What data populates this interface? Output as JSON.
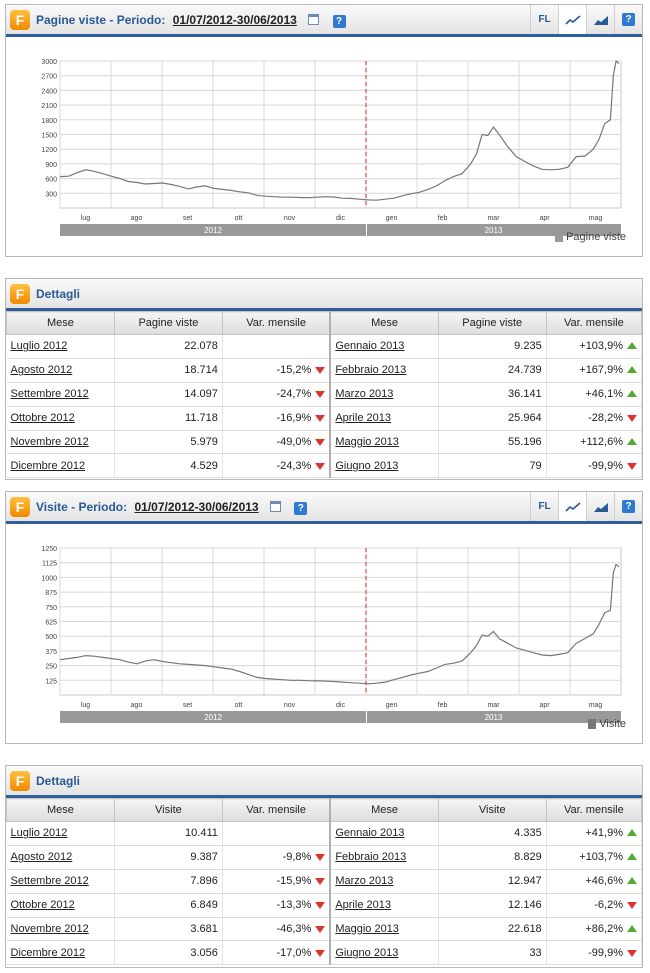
{
  "chart1": {
    "title": "Pagine viste - Periodo:",
    "period": "01/07/2012-30/06/2013",
    "tools": {
      "fl": "FL"
    },
    "legend": "Pagine viste",
    "chart_data": {
      "type": "line",
      "series": [
        {
          "name": "Pagine viste"
        }
      ],
      "ylim": [
        0,
        3000
      ],
      "y_ticks": [
        "3000",
        "2700",
        "2400",
        "2100",
        "1800",
        "1500",
        "1200",
        "900",
        "600",
        "300"
      ],
      "x_months": [
        "lug",
        "ago",
        "set",
        "ott",
        "nov",
        "dic",
        "gen",
        "feb",
        "mar",
        "apr",
        "mag"
      ],
      "years": [
        "2012",
        "2013"
      ],
      "points": [
        [
          0,
          640
        ],
        [
          6,
          650
        ],
        [
          12,
          720
        ],
        [
          18,
          780
        ],
        [
          24,
          750
        ],
        [
          30,
          700
        ],
        [
          36,
          650
        ],
        [
          42,
          600
        ],
        [
          48,
          540
        ],
        [
          54,
          520
        ],
        [
          60,
          490
        ],
        [
          66,
          500
        ],
        [
          72,
          510
        ],
        [
          78,
          480
        ],
        [
          84,
          440
        ],
        [
          90,
          390
        ],
        [
          96,
          430
        ],
        [
          102,
          450
        ],
        [
          108,
          400
        ],
        [
          114,
          380
        ],
        [
          120,
          360
        ],
        [
          126,
          330
        ],
        [
          132,
          310
        ],
        [
          138,
          260
        ],
        [
          144,
          240
        ],
        [
          150,
          230
        ],
        [
          156,
          220
        ],
        [
          162,
          220
        ],
        [
          168,
          215
        ],
        [
          174,
          210
        ],
        [
          180,
          220
        ],
        [
          186,
          230
        ],
        [
          192,
          225
        ],
        [
          198,
          200
        ],
        [
          204,
          195
        ],
        [
          210,
          180
        ],
        [
          216,
          165
        ],
        [
          222,
          160
        ],
        [
          228,
          180
        ],
        [
          234,
          200
        ],
        [
          240,
          250
        ],
        [
          246,
          290
        ],
        [
          252,
          320
        ],
        [
          258,
          380
        ],
        [
          264,
          450
        ],
        [
          270,
          560
        ],
        [
          276,
          640
        ],
        [
          282,
          700
        ],
        [
          288,
          900
        ],
        [
          292,
          1100
        ],
        [
          296,
          1500
        ],
        [
          300,
          1480
        ],
        [
          304,
          1650
        ],
        [
          308,
          1500
        ],
        [
          314,
          1250
        ],
        [
          320,
          1050
        ],
        [
          326,
          950
        ],
        [
          332,
          860
        ],
        [
          338,
          790
        ],
        [
          344,
          780
        ],
        [
          350,
          790
        ],
        [
          356,
          830
        ],
        [
          362,
          1050
        ],
        [
          368,
          1060
        ],
        [
          374,
          1200
        ],
        [
          378,
          1400
        ],
        [
          382,
          1720
        ],
        [
          386,
          1800
        ],
        [
          388,
          2700
        ],
        [
          390,
          3000
        ],
        [
          392,
          2950
        ]
      ]
    }
  },
  "table1": {
    "title": "Dettagli",
    "headers": [
      "Mese",
      "Pagine viste",
      "Var. mensile",
      "Mese",
      "Pagine viste",
      "Var. mensile"
    ],
    "rows": [
      {
        "lm": "Luglio 2012",
        "lv": "22.078",
        "lc": "",
        "ld": "",
        "rm": "Gennaio 2013",
        "rv": "9.235",
        "rc": "+103,9%",
        "rd": "up"
      },
      {
        "lm": "Agosto 2012",
        "lv": "18.714",
        "lc": "-15,2%",
        "ld": "down",
        "rm": "Febbraio 2013",
        "rv": "24.739",
        "rc": "+167,9%",
        "rd": "up"
      },
      {
        "lm": "Settembre 2012",
        "lv": "14.097",
        "lc": "-24,7%",
        "ld": "down",
        "rm": "Marzo 2013",
        "rv": "36.141",
        "rc": "+46,1%",
        "rd": "up"
      },
      {
        "lm": "Ottobre 2012",
        "lv": "11.718",
        "lc": "-16,9%",
        "ld": "down",
        "rm": "Aprile 2013",
        "rv": "25.964",
        "rc": "-28,2%",
        "rd": "down"
      },
      {
        "lm": "Novembre 2012",
        "lv": "5.979",
        "lc": "-49,0%",
        "ld": "down",
        "rm": "Maggio 2013",
        "rv": "55.196",
        "rc": "+112,6%",
        "rd": "up"
      },
      {
        "lm": "Dicembre 2012",
        "lv": "4.529",
        "lc": "-24,3%",
        "ld": "down",
        "rm": "Giugno 2013",
        "rv": "79",
        "rc": "-99,9%",
        "rd": "down"
      }
    ]
  },
  "chart2": {
    "title": "Visite - Periodo:",
    "period": "01/07/2012-30/06/2013",
    "tools": {
      "fl": "FL"
    },
    "legend": "Visite",
    "chart_data": {
      "type": "line",
      "series": [
        {
          "name": "Visite"
        }
      ],
      "ylim": [
        0,
        1250
      ],
      "y_ticks": [
        "1250",
        "1125",
        "1000",
        "875",
        "750",
        "625",
        "500",
        "375",
        "250",
        "125"
      ],
      "x_months": [
        "lug",
        "ago",
        "set",
        "ott",
        "nov",
        "dic",
        "gen",
        "feb",
        "mar",
        "apr",
        "mag"
      ],
      "years": [
        "2012",
        "2013"
      ],
      "points": [
        [
          0,
          300
        ],
        [
          6,
          310
        ],
        [
          12,
          320
        ],
        [
          18,
          335
        ],
        [
          24,
          330
        ],
        [
          30,
          320
        ],
        [
          36,
          310
        ],
        [
          42,
          300
        ],
        [
          48,
          280
        ],
        [
          54,
          265
        ],
        [
          60,
          290
        ],
        [
          66,
          300
        ],
        [
          72,
          285
        ],
        [
          78,
          275
        ],
        [
          84,
          265
        ],
        [
          90,
          260
        ],
        [
          96,
          255
        ],
        [
          102,
          250
        ],
        [
          108,
          240
        ],
        [
          114,
          230
        ],
        [
          120,
          220
        ],
        [
          126,
          200
        ],
        [
          132,
          175
        ],
        [
          138,
          150
        ],
        [
          144,
          140
        ],
        [
          150,
          135
        ],
        [
          156,
          130
        ],
        [
          162,
          125
        ],
        [
          168,
          125
        ],
        [
          174,
          122
        ],
        [
          180,
          120
        ],
        [
          186,
          118
        ],
        [
          192,
          115
        ],
        [
          198,
          110
        ],
        [
          204,
          105
        ],
        [
          210,
          100
        ],
        [
          216,
          95
        ],
        [
          222,
          100
        ],
        [
          228,
          110
        ],
        [
          234,
          130
        ],
        [
          240,
          150
        ],
        [
          246,
          170
        ],
        [
          252,
          185
        ],
        [
          258,
          200
        ],
        [
          264,
          230
        ],
        [
          270,
          260
        ],
        [
          276,
          270
        ],
        [
          282,
          290
        ],
        [
          288,
          360
        ],
        [
          292,
          420
        ],
        [
          296,
          510
        ],
        [
          300,
          500
        ],
        [
          304,
          540
        ],
        [
          308,
          480
        ],
        [
          314,
          440
        ],
        [
          320,
          400
        ],
        [
          326,
          380
        ],
        [
          332,
          360
        ],
        [
          338,
          340
        ],
        [
          344,
          335
        ],
        [
          350,
          345
        ],
        [
          356,
          360
        ],
        [
          362,
          440
        ],
        [
          368,
          480
        ],
        [
          374,
          520
        ],
        [
          378,
          600
        ],
        [
          382,
          700
        ],
        [
          386,
          720
        ],
        [
          388,
          1040
        ],
        [
          390,
          1110
        ],
        [
          392,
          1090
        ]
      ]
    }
  },
  "table2": {
    "title": "Dettagli",
    "headers": [
      "Mese",
      "Visite",
      "Var. mensile",
      "Mese",
      "Visite",
      "Var. mensile"
    ],
    "rows": [
      {
        "lm": "Luglio 2012",
        "lv": "10.411",
        "lc": "",
        "ld": "",
        "rm": "Gennaio 2013",
        "rv": "4.335",
        "rc": "+41,9%",
        "rd": "up"
      },
      {
        "lm": "Agosto 2012",
        "lv": "9.387",
        "lc": "-9,8%",
        "ld": "down",
        "rm": "Febbraio 2013",
        "rv": "8.829",
        "rc": "+103,7%",
        "rd": "up"
      },
      {
        "lm": "Settembre 2012",
        "lv": "7.896",
        "lc": "-15,9%",
        "ld": "down",
        "rm": "Marzo 2013",
        "rv": "12.947",
        "rc": "+46,6%",
        "rd": "up"
      },
      {
        "lm": "Ottobre 2012",
        "lv": "6.849",
        "lc": "-13,3%",
        "ld": "down",
        "rm": "Aprile 2013",
        "rv": "12.146",
        "rc": "-6,2%",
        "rd": "down"
      },
      {
        "lm": "Novembre 2012",
        "lv": "3.681",
        "lc": "-46,3%",
        "ld": "down",
        "rm": "Maggio 2013",
        "rv": "22.618",
        "rc": "+86,2%",
        "rd": "up"
      },
      {
        "lm": "Dicembre 2012",
        "lv": "3.056",
        "lc": "-17,0%",
        "ld": "down",
        "rm": "Giugno 2013",
        "rv": "33",
        "rc": "-99,9%",
        "rd": "down"
      }
    ]
  }
}
